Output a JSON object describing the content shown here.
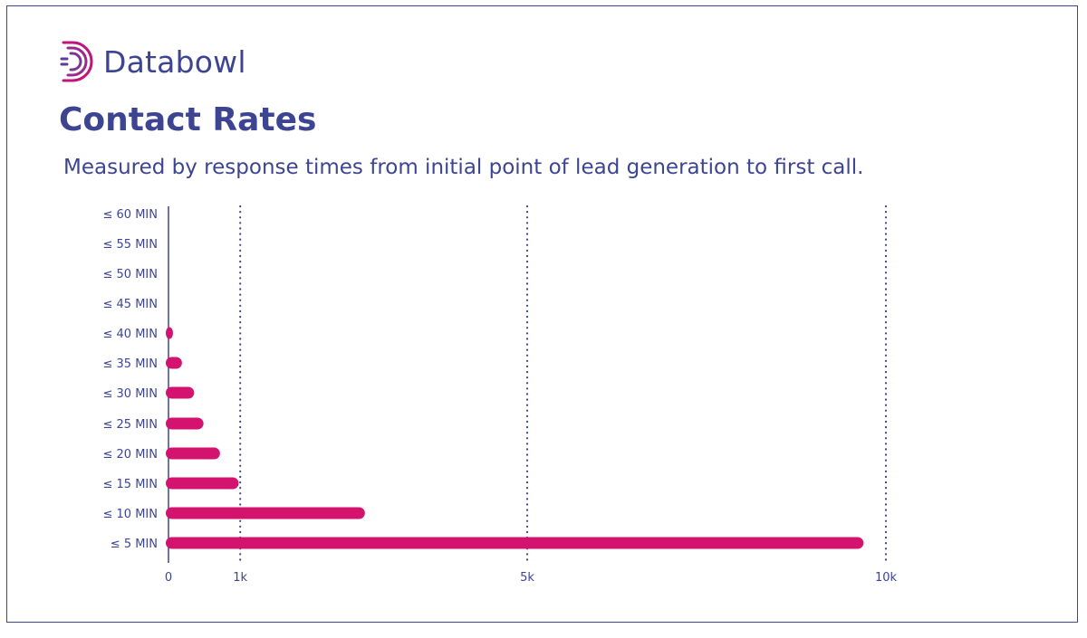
{
  "brand": {
    "name": "Databowl",
    "logo_icon": "databowl-d-logo-icon",
    "logo_color": "#c0157a"
  },
  "title": "Contact Rates",
  "subtitle": "Measured by response times from initial point of lead generation to first call.",
  "colors": {
    "text": "#3d4592",
    "bar": "#d4136f",
    "frame": "#3d4592"
  },
  "chart_data": {
    "type": "bar",
    "orientation": "horizontal",
    "categories": [
      "≤ 60 MIN",
      "≤ 55 MIN",
      "≤ 50 MIN",
      "≤ 45 MIN",
      "≤ 40 MIN",
      "≤ 35 MIN",
      "≤ 30 MIN",
      "≤ 25 MIN",
      "≤ 20 MIN",
      "≤ 15 MIN",
      "≤ 10 MIN",
      "≤ 5 MIN"
    ],
    "values": [
      0,
      0,
      0,
      0,
      20,
      150,
      320,
      450,
      680,
      940,
      2700,
      9650
    ],
    "xticks": [
      0,
      1000,
      5000,
      10000
    ],
    "xtick_labels": [
      "0",
      "1k",
      "5k",
      "10k"
    ],
    "xlim": [
      0,
      10000
    ],
    "grid": "vertical dotted at 1k, 5k, 10k",
    "legend": "none",
    "title": "Contact Rates",
    "subtitle": "Measured by response times from initial point of lead generation to first call."
  }
}
